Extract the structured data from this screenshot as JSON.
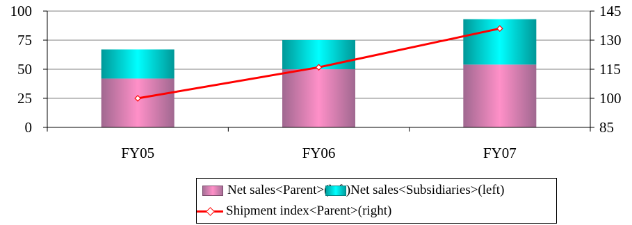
{
  "chart_data": {
    "type": "bar",
    "categories": [
      "FY05",
      "FY06",
      "FY07"
    ],
    "series": [
      {
        "name": "Net sales<Parent>(left)",
        "kind": "stacked-bar",
        "axis": "left",
        "color": "#ff90c8",
        "values": [
          42,
          50,
          54
        ]
      },
      {
        "name": "Net sales<Subsidiaries>(left)",
        "kind": "stacked-bar",
        "axis": "left",
        "color": "#00ffff",
        "values": [
          25,
          25,
          39
        ]
      },
      {
        "name": "Shipment index<Parent>(right)",
        "kind": "line",
        "axis": "right",
        "color": "#ff0000",
        "values": [
          100,
          116,
          136
        ]
      }
    ],
    "left_axis": {
      "min": 0,
      "max": 100,
      "ticks": [
        "0",
        "25",
        "50",
        "75",
        "100"
      ]
    },
    "right_axis": {
      "min": 85,
      "max": 145,
      "ticks": [
        "85",
        "100",
        "115",
        "130",
        "145"
      ]
    },
    "grid": "horizontal",
    "legend_position": "bottom"
  },
  "legend": {
    "parent_label": "Net sales<Parent>(left)",
    "subsidiaries_label": "Net sales<Subsidiaries>(left)",
    "shipment_label": "Shipment index<Parent>(right)"
  }
}
